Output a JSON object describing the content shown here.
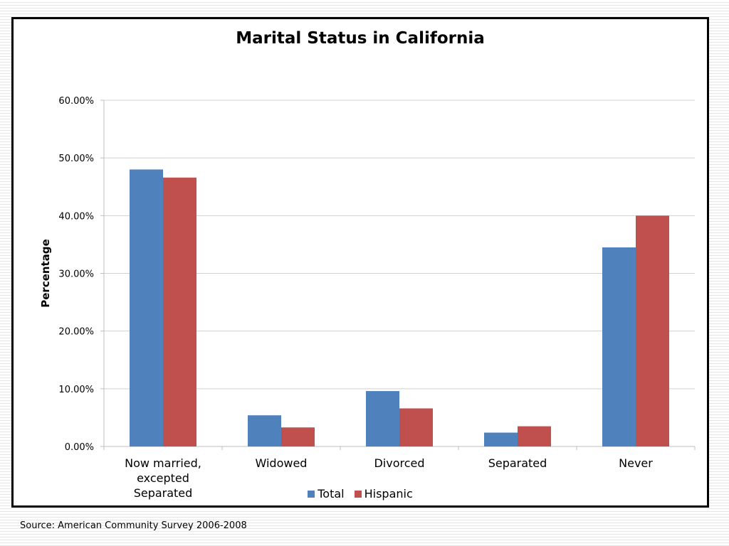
{
  "chart_data": {
    "type": "bar",
    "title": "Marital Status in California",
    "ylabel": "Percentage",
    "xlabel": "",
    "ylim": [
      0,
      60
    ],
    "y_ticks": [
      "0.00%",
      "10.00%",
      "20.00%",
      "30.00%",
      "40.00%",
      "50.00%",
      "60.00%"
    ],
    "y_tick_values": [
      0,
      10,
      20,
      30,
      40,
      50,
      60
    ],
    "categories": [
      [
        "Now married,",
        "excepted",
        "Separated"
      ],
      [
        "Widowed"
      ],
      [
        "Divorced"
      ],
      [
        "Separated"
      ],
      [
        "Never"
      ]
    ],
    "series": [
      {
        "name": "Total",
        "color": "#4f81bd",
        "values": [
          48.0,
          5.4,
          9.6,
          2.4,
          34.5
        ]
      },
      {
        "name": "Hispanic",
        "color": "#c0504d",
        "values": [
          46.6,
          3.3,
          6.6,
          3.5,
          40.0
        ]
      }
    ],
    "grid": true,
    "legend": "bottom"
  },
  "source": "Source: American Community Survey 2006-2008"
}
